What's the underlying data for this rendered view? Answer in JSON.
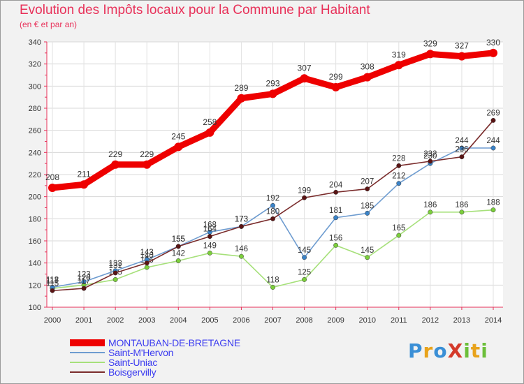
{
  "header": {
    "title": "Evolution des Impôts locaux pour la Commune par Habitant",
    "subtitle": "(en € et par an)"
  },
  "logo": {
    "text": "ProXiti",
    "letter_colors": [
      "#3a8fd6",
      "#e8a31c",
      "#3a8fd6",
      "#d43a2a",
      "#6cbf3a",
      "#e8a31c",
      "#6cbf3a"
    ]
  },
  "chart_data": {
    "type": "line",
    "title": "Evolution des Impôts locaux pour la Commune par Habitant",
    "ylabel": "(en € et par an)",
    "xlabel": "",
    "x": [
      "2000",
      "2001",
      "2002",
      "2003",
      "2004",
      "2005",
      "2006",
      "2007",
      "2008",
      "2009",
      "2010",
      "2011",
      "2012",
      "2013",
      "2014"
    ],
    "ylim": [
      100,
      340
    ],
    "yticks": [
      100,
      120,
      140,
      160,
      180,
      200,
      220,
      240,
      260,
      280,
      300,
      320,
      340
    ],
    "grid": true,
    "legend_position": "bottom-left",
    "series": [
      {
        "name": "Saint-Uniac",
        "color": "#a6e07a",
        "marker": "#7ccf3c",
        "values": [
          117,
          120,
          125,
          136,
          142,
          149,
          146,
          118,
          125,
          156,
          145,
          165,
          186,
          186,
          188
        ],
        "labels": [
          "117",
          "120",
          "125",
          "136",
          "142",
          "149",
          "146",
          "118",
          "125",
          "156",
          "145",
          "165",
          "186",
          "186",
          "188"
        ]
      },
      {
        "name": "Saint-M'Hervon",
        "color": "#6e9cd0",
        "marker": "#3a83c8",
        "values": [
          118,
          123,
          133,
          143,
          155,
          168,
          173,
          192,
          145,
          181,
          185,
          212,
          230,
          244,
          244
        ],
        "labels": [
          "118",
          "123",
          "133",
          "143",
          "155",
          "168",
          "173",
          "192",
          "145",
          "181",
          "185",
          "212",
          "230",
          "244",
          "244"
        ]
      },
      {
        "name": "Boisgervilly",
        "color": "#7a2c2c",
        "marker": "#5a1414",
        "values": [
          115,
          117,
          131,
          140,
          155,
          164,
          173,
          180,
          199,
          204,
          207,
          228,
          232,
          236,
          269
        ],
        "labels": [
          "115",
          "117",
          "131",
          "140",
          "155",
          "164",
          "173",
          "180",
          "199",
          "204",
          "207",
          "228",
          "232",
          "236",
          "269"
        ]
      },
      {
        "name": "MONTAUBAN-DE-BRETAGNE",
        "color": "#ee0000",
        "marker": "#ee0000",
        "values": [
          208,
          211,
          229,
          229,
          245,
          258,
          289,
          293,
          307,
          299,
          308,
          319,
          329,
          327,
          330
        ],
        "labels": [
          "208",
          "211",
          "229",
          "229",
          "245",
          "258",
          "289",
          "293",
          "307",
          "299",
          "308",
          "319",
          "329",
          "327",
          "330"
        ]
      }
    ]
  },
  "legend": {
    "items": [
      {
        "label": "MONTAUBAN-DE-BRETAGNE",
        "color": "#ee0000",
        "width": 10
      },
      {
        "label": "Saint-M'Hervon",
        "color": "#6e9cd0",
        "width": 2
      },
      {
        "label": "Saint-Uniac",
        "color": "#a6e07a",
        "width": 2
      },
      {
        "label": "Boisgervilly",
        "color": "#7a2c2c",
        "width": 2
      }
    ]
  }
}
